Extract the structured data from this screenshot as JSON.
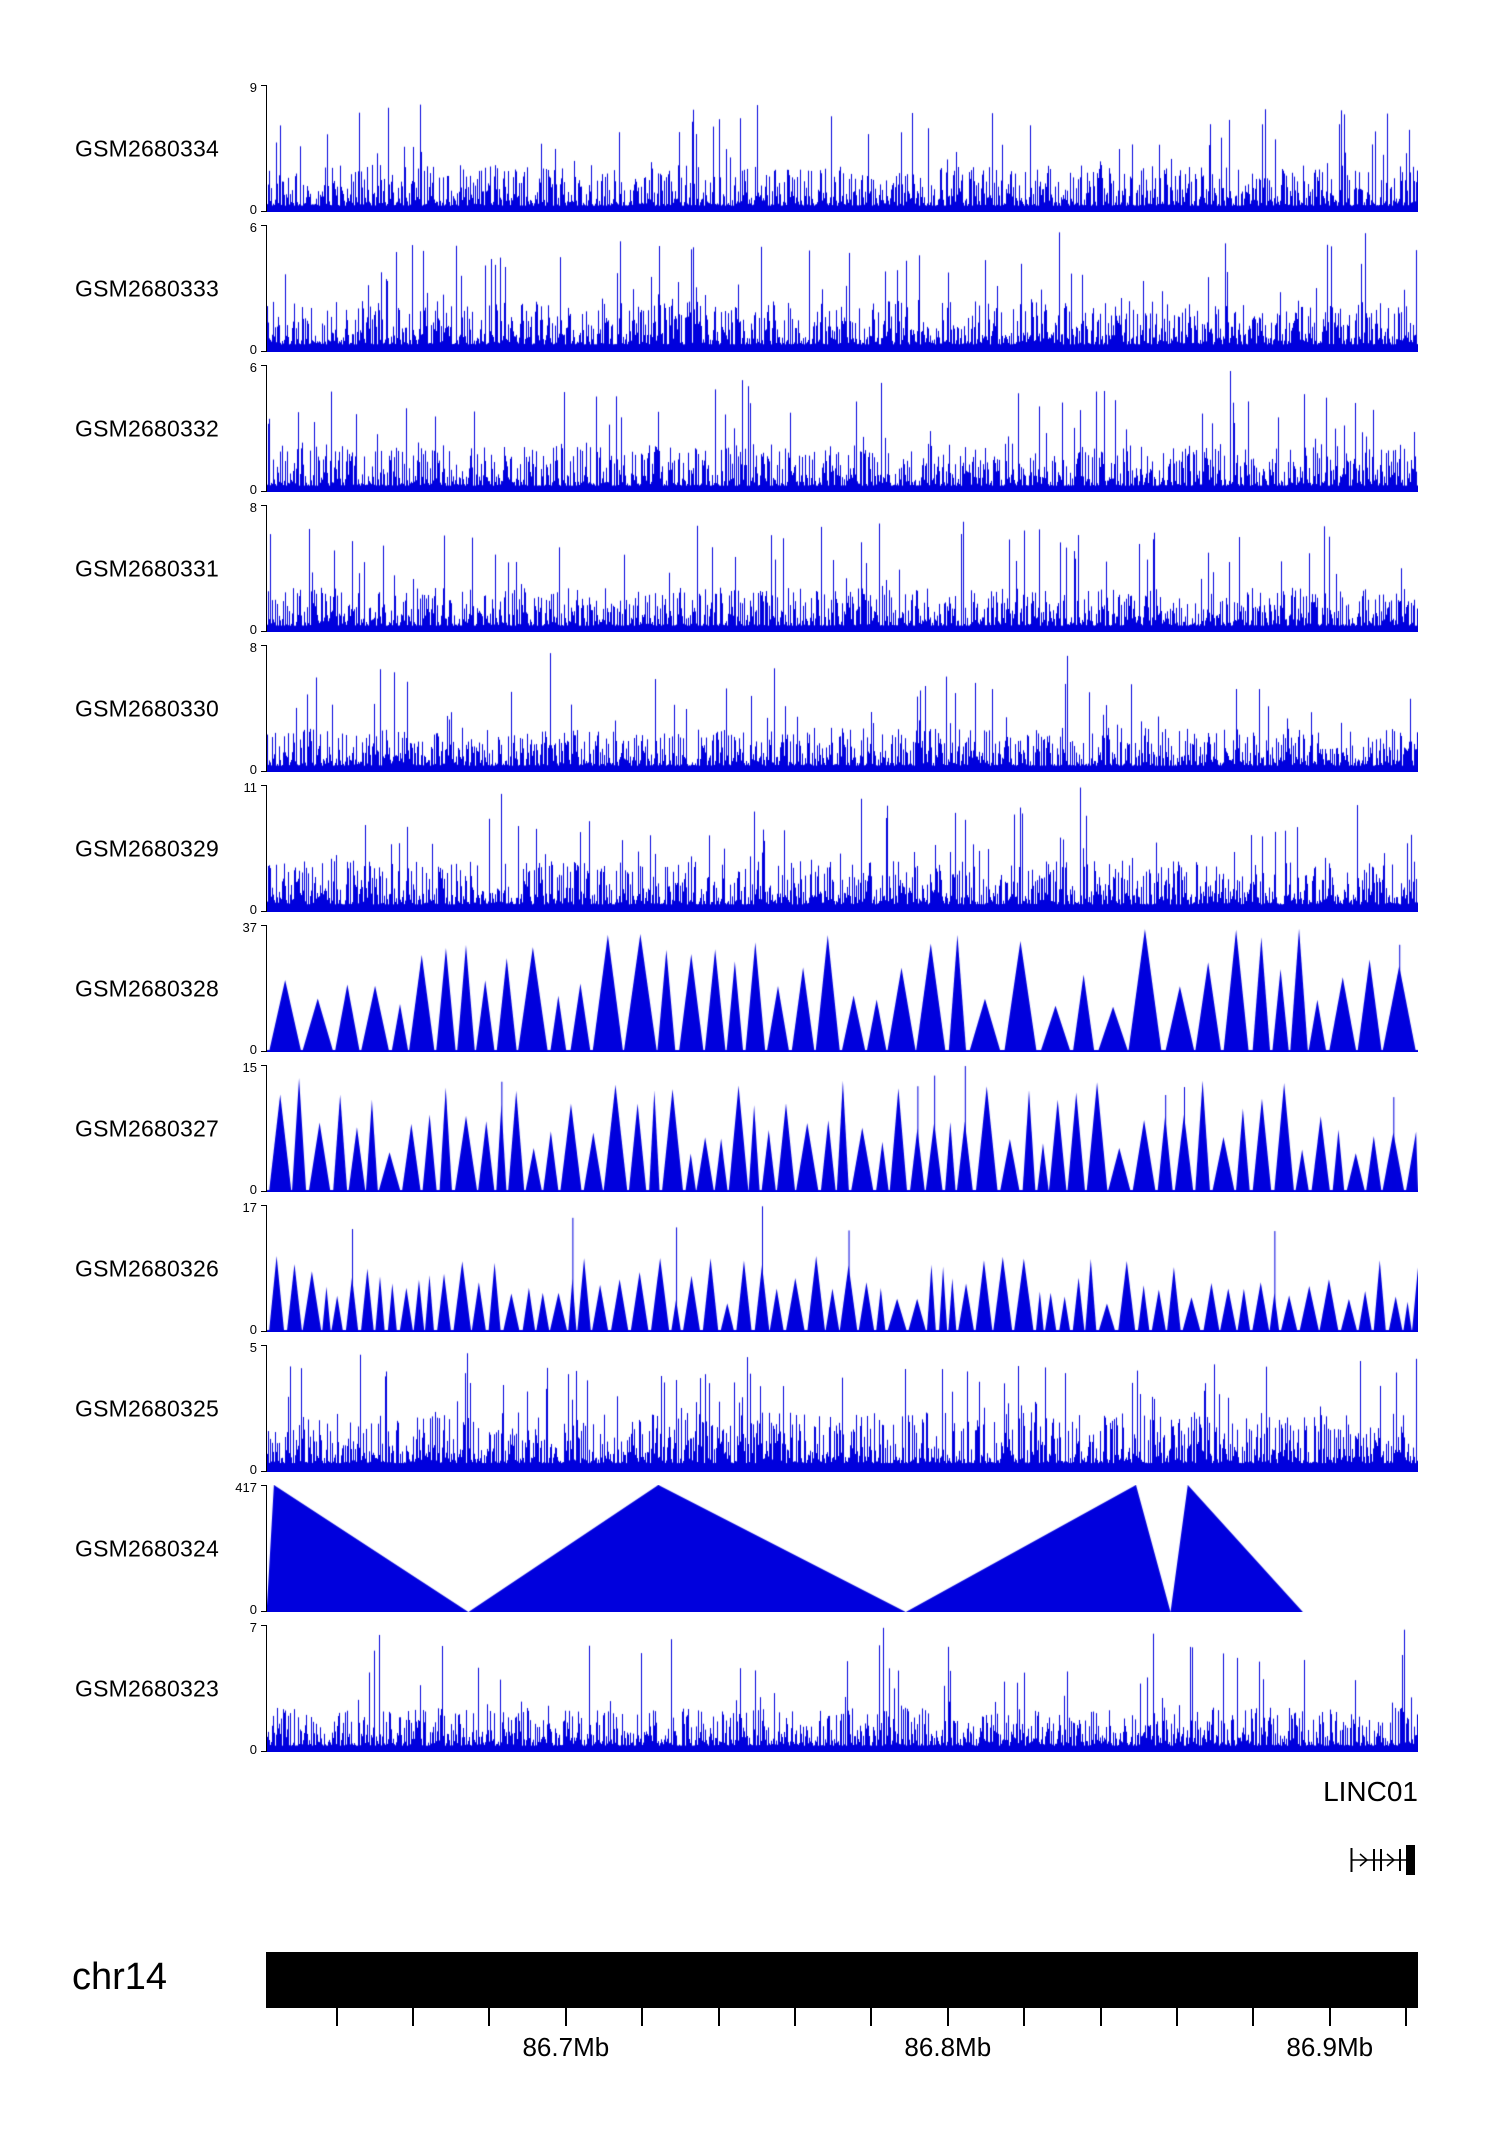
{
  "chart_data": {
    "type": "area",
    "description_visible_text": "",
    "chromosome": "chr14",
    "gene_label": "LINC01",
    "signal_color": "#0000dd",
    "axis": {
      "unit": "Mb",
      "start_mb": 86.6215,
      "end_mb": 86.9231,
      "minor_ticks_mb": [
        86.64,
        86.66,
        86.68,
        86.7,
        86.72,
        86.74,
        86.76,
        86.78,
        86.8,
        86.82,
        86.84,
        86.86,
        86.88,
        86.9,
        86.92
      ],
      "major_ticks": [
        {
          "pos_mb": 86.7,
          "label": "86.7Mb"
        },
        {
          "pos_mb": 86.8,
          "label": "86.8Mb"
        },
        {
          "pos_mb": 86.9,
          "label": "86.9Mb"
        }
      ]
    },
    "tracks": [
      {
        "name": "GSM2680334",
        "ymax": 9,
        "ymin": 0,
        "style": "dense",
        "seed": 11,
        "params": {
          "base": 0.05,
          "amp": 0.32,
          "spike": 0.05,
          "rare": 0.004
        }
      },
      {
        "name": "GSM2680333",
        "ymax": 6,
        "ymin": 0,
        "style": "dense",
        "seed": 22,
        "params": {
          "base": 0.06,
          "amp": 0.34,
          "spike": 0.06,
          "rare": 0.003
        }
      },
      {
        "name": "GSM2680332",
        "ymax": 6,
        "ymin": 0,
        "style": "dense",
        "seed": 33,
        "params": {
          "base": 0.05,
          "amp": 0.33,
          "spike": 0.05,
          "rare": 0.004
        }
      },
      {
        "name": "GSM2680331",
        "ymax": 8,
        "ymin": 0,
        "style": "dense",
        "seed": 44,
        "params": {
          "base": 0.05,
          "amp": 0.3,
          "spike": 0.05,
          "rare": 0.003
        }
      },
      {
        "name": "GSM2680330",
        "ymax": 8,
        "ymin": 0,
        "style": "dense",
        "seed": 55,
        "params": {
          "base": 0.05,
          "amp": 0.3,
          "spike": 0.04,
          "rare": 0.003
        }
      },
      {
        "name": "GSM2680329",
        "ymax": 11,
        "ymin": 0,
        "style": "dense",
        "seed": 66,
        "params": {
          "base": 0.06,
          "amp": 0.34,
          "spike": 0.05,
          "rare": 0.003
        }
      },
      {
        "name": "GSM2680328",
        "ymax": 37,
        "ymin": 0,
        "style": "triangles",
        "seed": 77,
        "params": {
          "wmin": 16,
          "wmax": 34,
          "hmin": 0.35,
          "hmax": 1.0,
          "gap": 4,
          "spike": 0.06
        }
      },
      {
        "name": "GSM2680327",
        "ymax": 15,
        "ymin": 0,
        "style": "triangles",
        "seed": 88,
        "params": {
          "wmin": 10,
          "wmax": 24,
          "hmin": 0.3,
          "hmax": 0.9,
          "gap": 3,
          "spike": 0.08
        }
      },
      {
        "name": "GSM2680326",
        "ymax": 17,
        "ymin": 0,
        "style": "triangles",
        "seed": 99,
        "params": {
          "wmin": 8,
          "wmax": 20,
          "hmin": 0.22,
          "hmax": 0.6,
          "gap": 3,
          "spike": 0.07
        }
      },
      {
        "name": "GSM2680325",
        "ymax": 5,
        "ymin": 0,
        "style": "dense",
        "seed": 110,
        "params": {
          "base": 0.07,
          "amp": 0.4,
          "spike": 0.08,
          "rare": 0.004
        }
      },
      {
        "name": "GSM2680324",
        "ymax": 417,
        "ymin": 0,
        "style": "polygon",
        "polygon": [
          [
            0.0,
            0.05
          ],
          [
            0.006,
            1.0
          ],
          [
            0.175,
            0.0
          ],
          [
            0.34,
            1.0
          ],
          [
            0.555,
            0.0
          ],
          [
            0.755,
            1.0
          ],
          [
            0.785,
            0.0
          ],
          [
            0.8,
            1.0
          ],
          [
            0.9,
            0.0
          ],
          [
            1.0,
            0.0
          ]
        ]
      },
      {
        "name": "GSM2680323",
        "ymax": 7,
        "ymin": 0,
        "style": "dense",
        "seed": 121,
        "params": {
          "base": 0.05,
          "amp": 0.3,
          "spike": 0.05,
          "rare": 0.004
        }
      }
    ]
  }
}
